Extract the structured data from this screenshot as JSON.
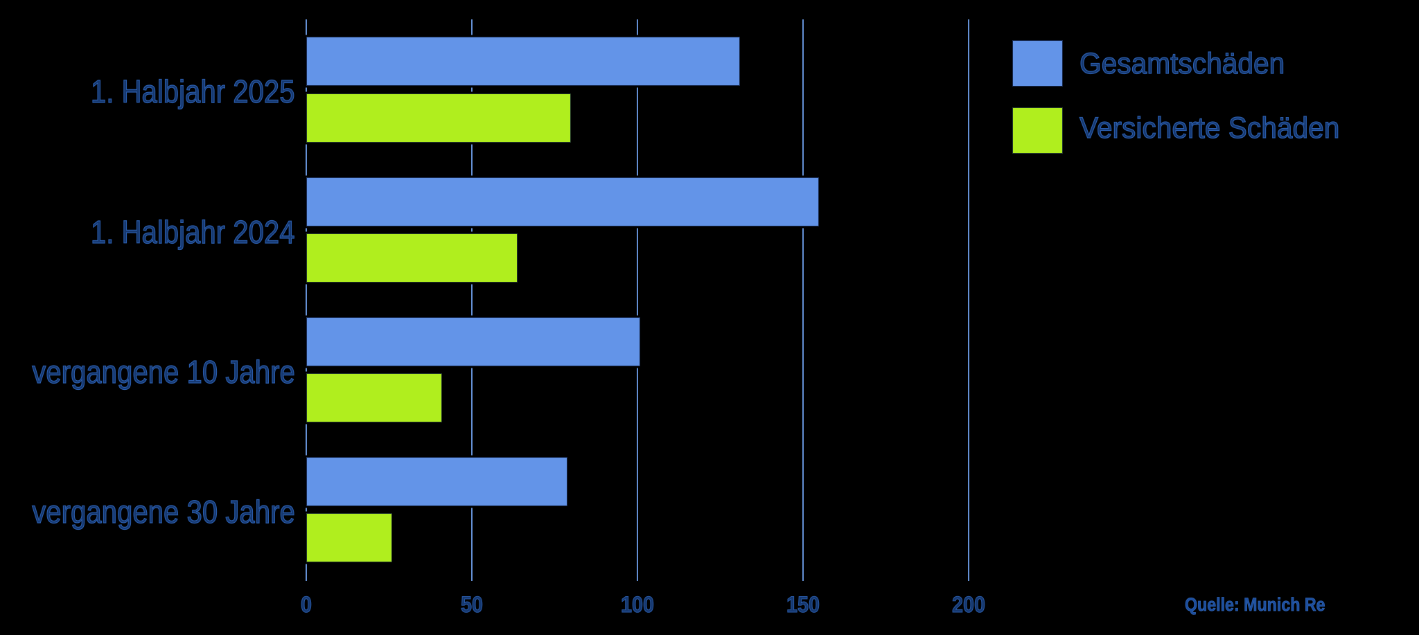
{
  "chart_data": {
    "type": "bar",
    "orientation": "horizontal",
    "title": "",
    "xlabel": "",
    "ylabel": "",
    "categories": [
      "1. Halbjahr 2025",
      "1. Halbjahr 2024",
      "vergangene 10 Jahre",
      "vergangene 30 Jahre"
    ],
    "series": [
      {
        "name": "Gesamtschäden",
        "values": [
          131,
          155,
          101,
          79
        ],
        "color": "#6394e8"
      },
      {
        "name": "Versicherte Schäden",
        "values": [
          80,
          64,
          41,
          26
        ],
        "color": "#b0ee1e"
      }
    ],
    "x_ticks": [
      "0",
      "50",
      "100",
      "150",
      "200"
    ],
    "xlim": [
      0,
      200
    ],
    "grid": true,
    "legend_position": "top-right",
    "source": "Quelle: Munich Re"
  },
  "colors": {
    "background": "#000000",
    "text": "#16386f",
    "text_outline": "#2a5cab",
    "gridline": "#6490d4",
    "source_text": "#1d4e9c",
    "source_outline": "#2e62b4",
    "series_total": "#6394e8",
    "series_insured": "#b0ee1e"
  }
}
